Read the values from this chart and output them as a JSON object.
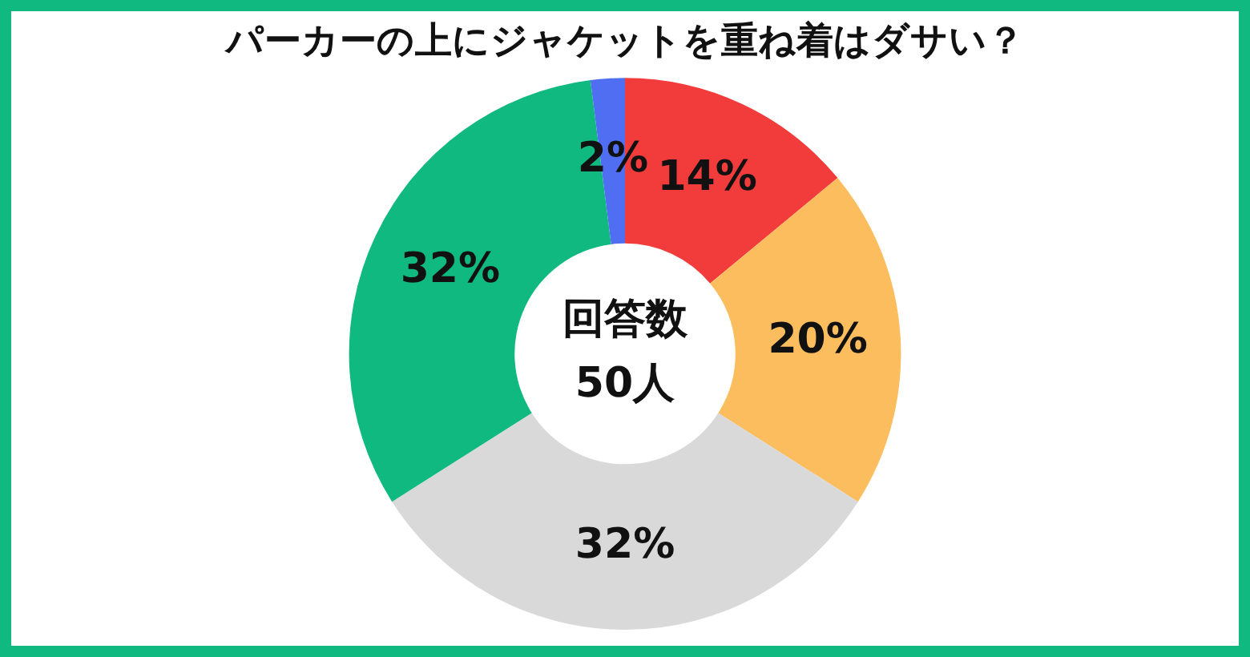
{
  "chart_data": {
    "type": "donut",
    "title": "パーカーの上にジャケットを重ね着はダサい？",
    "categories": [
      null,
      null,
      null,
      null,
      null
    ],
    "values": [
      14,
      20,
      32,
      32,
      2
    ],
    "colors": [
      "#f23b3b",
      "#fbbd5e",
      "#d9d9d9",
      "#10b97f",
      "#4f6ef2"
    ],
    "value_labels": [
      "14%",
      "20%",
      "32%",
      "32%",
      "2%"
    ],
    "annotations": [
      "回答数",
      "50人"
    ],
    "legend": false
  }
}
